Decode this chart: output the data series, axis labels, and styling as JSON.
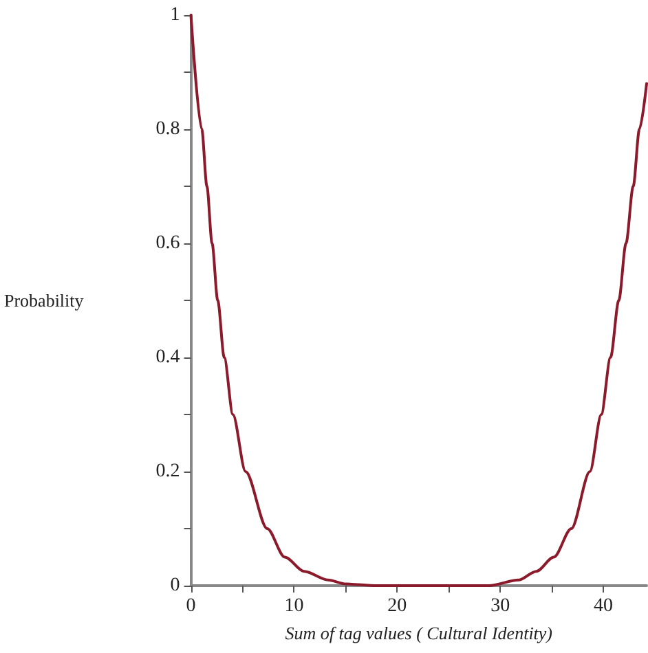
{
  "chart_data": {
    "type": "line",
    "xlabel": "Sum of tag values ( Cultural Identity)",
    "ylabel": "Probability",
    "x": [
      0,
      1.05,
      1.55,
      2.05,
      2.6,
      3.23,
      4.07,
      5.3,
      7.4,
      9.1,
      11,
      13.3,
      15,
      18,
      22,
      26,
      28.9,
      31.8,
      33.5,
      35.2,
      36.9,
      38.7,
      39.8,
      40.7,
      41.5,
      42.2,
      42.9,
      43.5,
      44.2
    ],
    "series": [
      {
        "color": "#8b1a2b",
        "values": [
          1,
          0.8,
          0.7,
          0.6,
          0.5,
          0.4,
          0.3,
          0.2,
          0.1,
          0.05,
          0.025,
          0.01,
          0.003,
          0,
          0,
          0,
          0,
          0.01,
          0.025,
          0.05,
          0.1,
          0.2,
          0.3,
          0.4,
          0.5,
          0.6,
          0.7,
          0.8,
          0.88
        ]
      }
    ],
    "xlim": [
      0,
      44.2
    ],
    "xticks": [
      0,
      {
        "value": 5,
        "label": null
      },
      10,
      {
        "value": 15,
        "label": null
      },
      20,
      {
        "value": 25,
        "label": null
      },
      30,
      {
        "value": 35,
        "label": null
      },
      40
    ],
    "ylim": [
      0,
      1
    ],
    "yticks": [
      0,
      {
        "value": 0.1,
        "label": null
      },
      0.2,
      {
        "value": 0.3,
        "label": null
      },
      0.4,
      {
        "value": 0.5,
        "label": null
      },
      0.6,
      {
        "value": 0.7,
        "label": null
      },
      0.8,
      {
        "value": 0.9,
        "label": null
      },
      1
    ],
    "grid": false,
    "marker": "none",
    "line_style": "solid"
  }
}
